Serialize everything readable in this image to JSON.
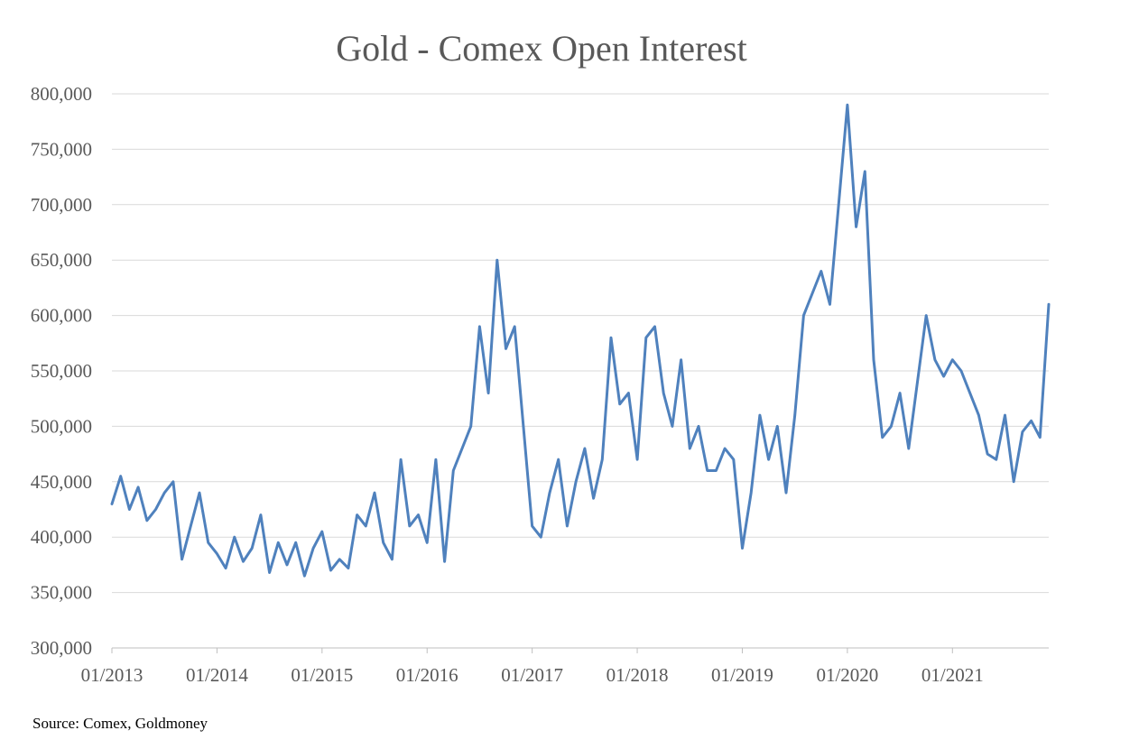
{
  "chart_data": {
    "type": "line",
    "title": "Gold - Comex Open Interest",
    "source": "Source: Comex, Goldmoney",
    "ylim": [
      300000,
      800000
    ],
    "yticks": [
      300000,
      350000,
      400000,
      450000,
      500000,
      550000,
      600000,
      650000,
      700000,
      750000,
      800000
    ],
    "ytick_labels": [
      "300,000",
      "350,000",
      "400,000",
      "450,000",
      "500,000",
      "550,000",
      "600,000",
      "650,000",
      "700,000",
      "750,000",
      "800,000"
    ],
    "xlim": [
      "2013-01",
      "2021-12"
    ],
    "xticks": [
      "2013-01",
      "2014-01",
      "2015-01",
      "2016-01",
      "2017-01",
      "2018-01",
      "2019-01",
      "2020-01",
      "2021-01"
    ],
    "xtick_labels": [
      "01/2013",
      "01/2014",
      "01/2015",
      "01/2016",
      "01/2017",
      "01/2018",
      "01/2019",
      "01/2020",
      "01/2021"
    ],
    "grid": true,
    "series": [
      {
        "color": "#4f81bd",
        "x": [
          "2013-01",
          "2013-02",
          "2013-03",
          "2013-04",
          "2013-05",
          "2013-06",
          "2013-07",
          "2013-08",
          "2013-09",
          "2013-10",
          "2013-11",
          "2013-12",
          "2014-01",
          "2014-02",
          "2014-03",
          "2014-04",
          "2014-05",
          "2014-06",
          "2014-07",
          "2014-08",
          "2014-09",
          "2014-10",
          "2014-11",
          "2014-12",
          "2015-01",
          "2015-02",
          "2015-03",
          "2015-04",
          "2015-05",
          "2015-06",
          "2015-07",
          "2015-08",
          "2015-09",
          "2015-10",
          "2015-11",
          "2015-12",
          "2016-01",
          "2016-02",
          "2016-03",
          "2016-04",
          "2016-05",
          "2016-06",
          "2016-07",
          "2016-08",
          "2016-09",
          "2016-10",
          "2016-11",
          "2016-12",
          "2017-01",
          "2017-02",
          "2017-03",
          "2017-04",
          "2017-05",
          "2017-06",
          "2017-07",
          "2017-08",
          "2017-09",
          "2017-10",
          "2017-11",
          "2017-12",
          "2018-01",
          "2018-02",
          "2018-03",
          "2018-04",
          "2018-05",
          "2018-06",
          "2018-07",
          "2018-08",
          "2018-09",
          "2018-10",
          "2018-11",
          "2018-12",
          "2019-01",
          "2019-02",
          "2019-03",
          "2019-04",
          "2019-05",
          "2019-06",
          "2019-07",
          "2019-08",
          "2019-09",
          "2019-10",
          "2019-11",
          "2019-12",
          "2020-01",
          "2020-02",
          "2020-03",
          "2020-04",
          "2020-05",
          "2020-06",
          "2020-07",
          "2020-08",
          "2020-09",
          "2020-10",
          "2020-11",
          "2020-12",
          "2021-01",
          "2021-02",
          "2021-03",
          "2021-04",
          "2021-05",
          "2021-06",
          "2021-07",
          "2021-08",
          "2021-09",
          "2021-10",
          "2021-11",
          "2021-12"
        ],
        "values": [
          430000,
          455000,
          425000,
          445000,
          415000,
          425000,
          440000,
          450000,
          380000,
          410000,
          440000,
          395000,
          385000,
          372000,
          400000,
          378000,
          390000,
          420000,
          368000,
          395000,
          375000,
          395000,
          365000,
          390000,
          405000,
          370000,
          380000,
          372000,
          420000,
          410000,
          440000,
          395000,
          380000,
          470000,
          410000,
          420000,
          395000,
          470000,
          378000,
          460000,
          480000,
          500000,
          590000,
          530000,
          650000,
          570000,
          590000,
          500000,
          410000,
          400000,
          440000,
          470000,
          410000,
          450000,
          480000,
          435000,
          470000,
          580000,
          520000,
          530000,
          470000,
          580000,
          590000,
          530000,
          500000,
          560000,
          480000,
          500000,
          460000,
          460000,
          480000,
          470000,
          390000,
          440000,
          510000,
          470000,
          500000,
          440000,
          510000,
          600000,
          620000,
          640000,
          610000,
          700000,
          790000,
          680000,
          730000,
          560000,
          490000,
          500000,
          530000,
          480000,
          540000,
          600000,
          560000,
          545000,
          560000,
          550000,
          530000,
          510000,
          475000,
          470000,
          510000,
          450000,
          495000,
          505000,
          490000,
          610000
        ]
      }
    ]
  }
}
